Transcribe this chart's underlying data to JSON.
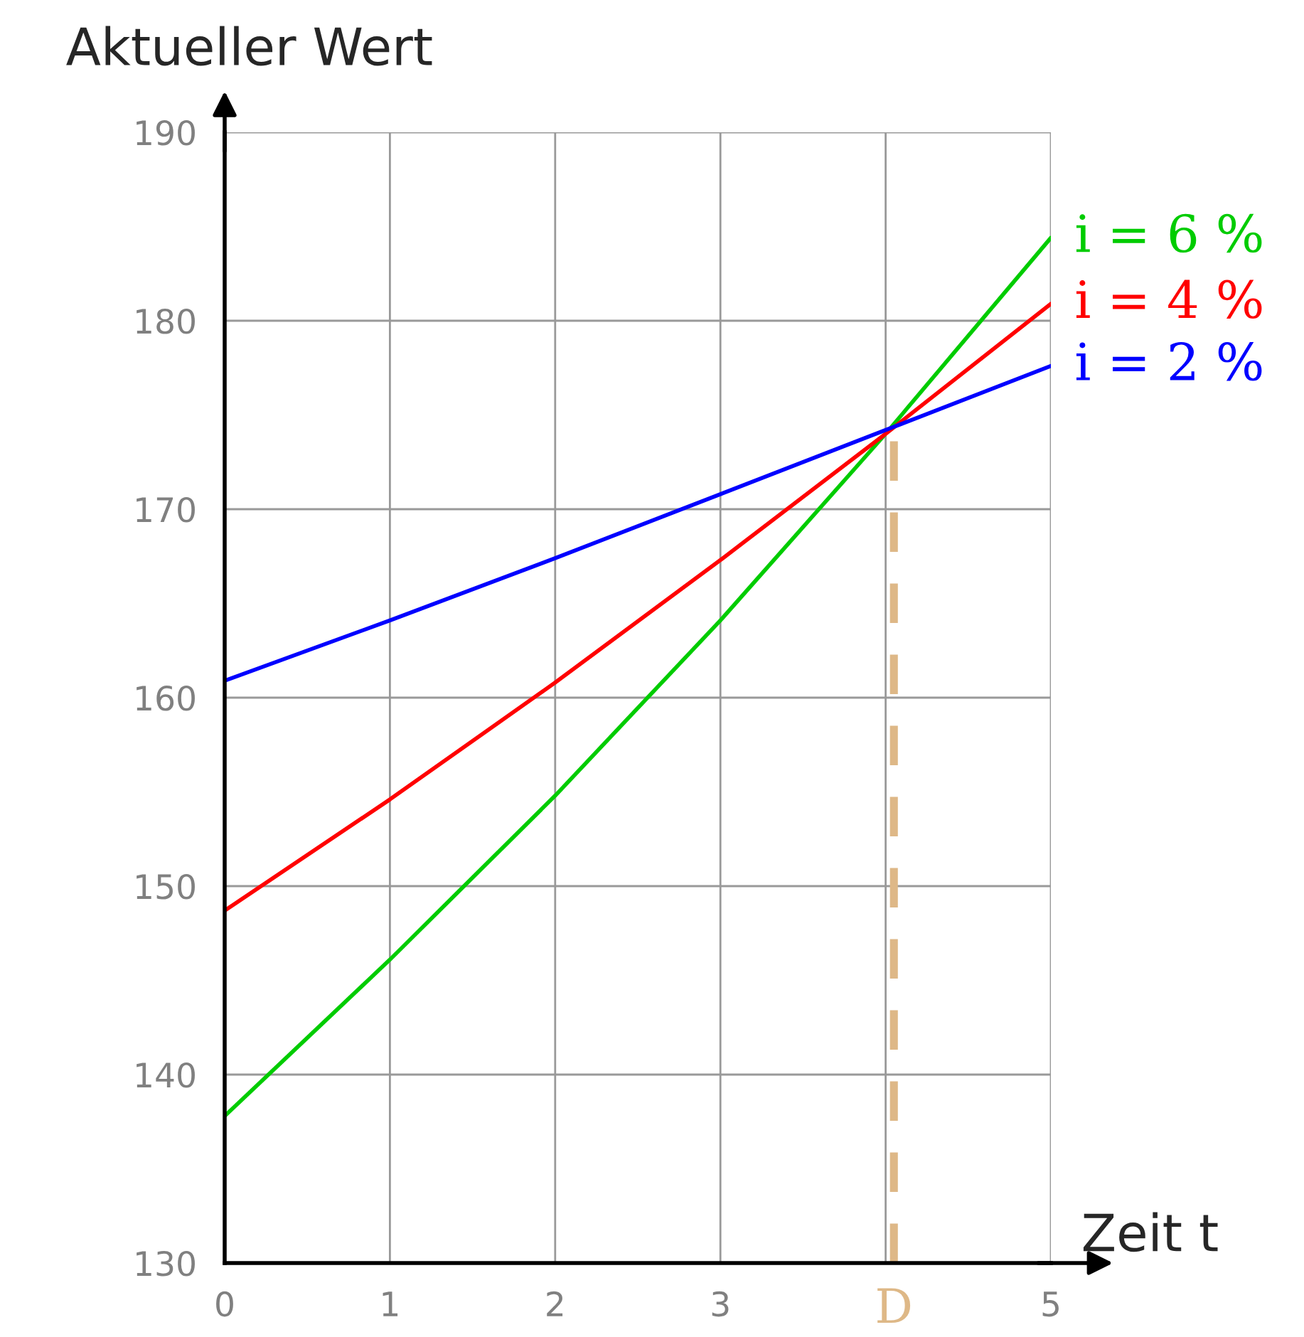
{
  "chart_data": {
    "type": "line",
    "xlabel": "Zeit t",
    "ylabel": "Aktueller Wert",
    "x": [
      0,
      1,
      2,
      3,
      4,
      5
    ],
    "series": [
      {
        "name": "i = 6 %",
        "color": "#00cc00",
        "values": [
          137.8,
          146.1,
          154.8,
          164.1,
          174.0,
          184.4
        ]
      },
      {
        "name": "i = 4 %",
        "color": "#ff0000",
        "values": [
          148.7,
          154.6,
          160.8,
          167.3,
          174.0,
          180.9
        ]
      },
      {
        "name": "i = 2 %",
        "color": "#0000ff",
        "values": [
          160.9,
          164.1,
          167.4,
          170.8,
          174.2,
          177.6
        ]
      }
    ],
    "xlim": [
      0,
      5
    ],
    "ylim": [
      130,
      190
    ],
    "xticks": [
      0,
      1,
      2,
      3,
      {
        "value": 4,
        "label": null
      },
      5
    ],
    "yticks": [
      130,
      140,
      150,
      160,
      170,
      180,
      190
    ],
    "ref_lines": [
      {
        "axis": "x",
        "value": 4.05,
        "label": "D",
        "color": "#deb887",
        "line_style": "dashed"
      }
    ],
    "grid": true,
    "marker": "none",
    "line_style": "solid"
  }
}
